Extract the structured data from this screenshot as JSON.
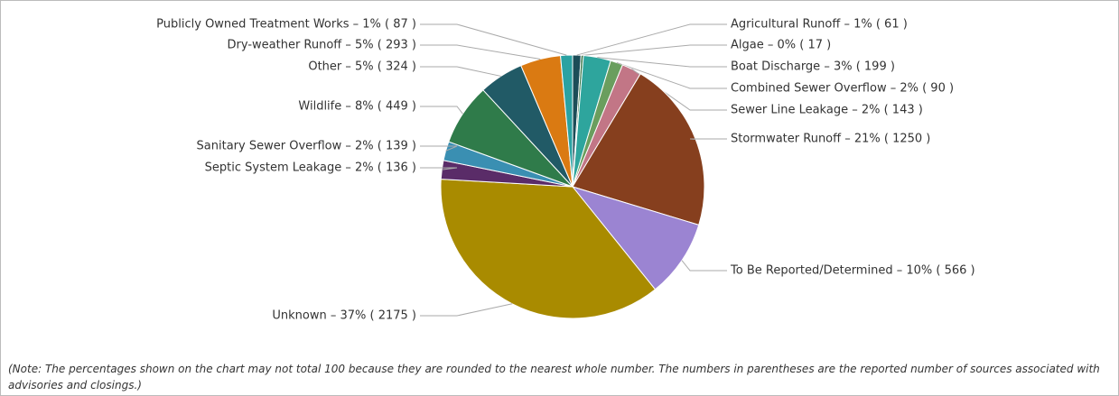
{
  "chart_data": {
    "type": "pie",
    "categories": [
      "Agricultural Runoff – 1% ( 61 )",
      "Algae – 0% ( 17 )",
      "Boat Discharge – 3% ( 199 )",
      "Combined Sewer Overflow – 2% ( 90 )",
      "Sewer Line Leakage – 2% ( 143 )",
      "Stormwater Runoff – 21% ( 1250 )",
      "To Be Reported/Determined – 10% ( 566 )",
      "Unknown – 37% ( 2175 )",
      "Septic System Leakage – 2% ( 136 )",
      "Sanitary Sewer Overflow – 2% ( 139 )",
      "Wildlife – 8% ( 449 )",
      "Other – 5% ( 324 )",
      "Dry-weather Runoff – 5% ( 293 )",
      "Publicly Owned Treatment Works – 1% ( 87 )"
    ],
    "values": [
      61,
      17,
      199,
      90,
      143,
      1250,
      566,
      2175,
      136,
      139,
      449,
      324,
      293,
      87
    ],
    "colors": [
      "#1c4d58",
      "#2f6e3e",
      "#2ea59d",
      "#6a9e5e",
      "#c27686",
      "#863f1e",
      "#9b84d2",
      "#a98b00",
      "#5a2c68",
      "#3a8fb2",
      "#2f7b4a",
      "#215a66",
      "#da7a12",
      "#2aa2a2"
    ],
    "note": "(Note: The percentages shown on the chart may not total 100 because they are rounded to the nearest whole number. The numbers in parentheses are the reported number of sources associated with advisories and closings.)"
  }
}
